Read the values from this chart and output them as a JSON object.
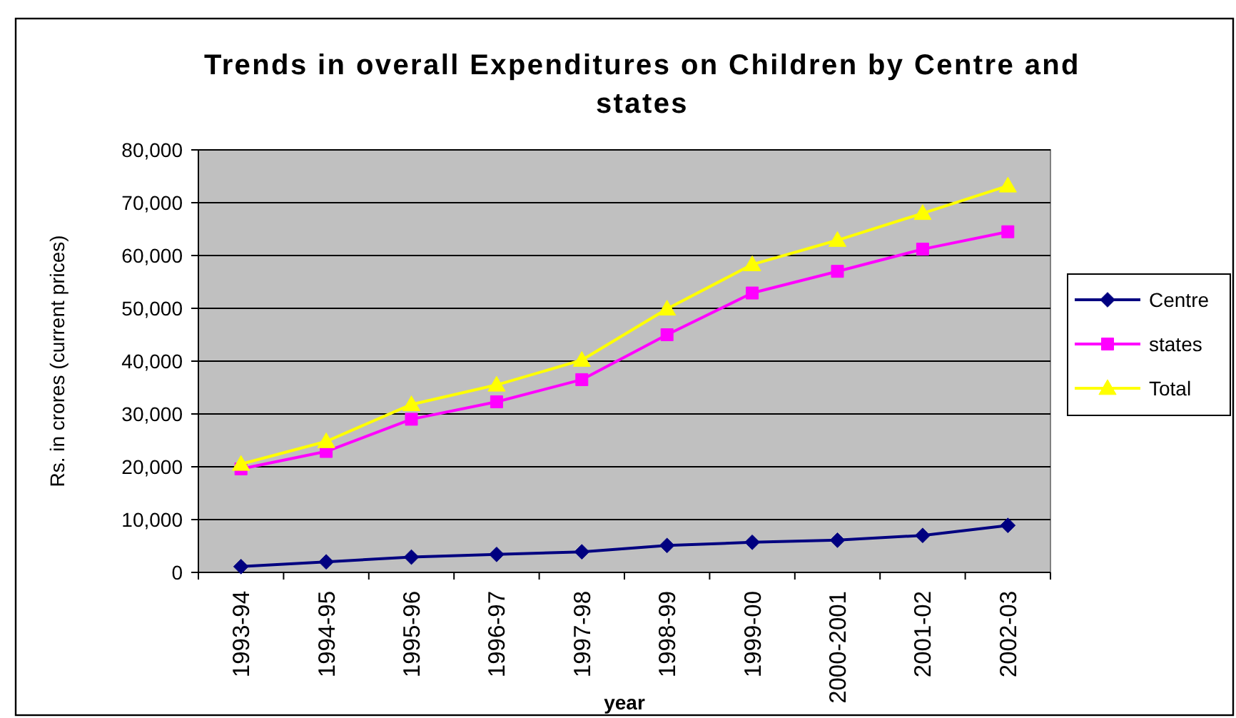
{
  "chart_data": {
    "type": "line",
    "title": "Trends in overall Expenditures on Children by Centre and states",
    "xlabel": "year",
    "ylabel": "Rs. in crores (current prices)",
    "categories": [
      "1993-94",
      "1994-95",
      "1995-96",
      "1996-97",
      "1997-98",
      "1998-99",
      "1999-00",
      "2000-2001",
      "2001-02",
      "2002-03"
    ],
    "series": [
      {
        "name": "Centre",
        "color": "#000080",
        "marker": "diamond",
        "values": [
          1100,
          2000,
          2900,
          3400,
          3900,
          5100,
          5700,
          6100,
          7000,
          8900
        ]
      },
      {
        "name": "states",
        "color": "#ff00ff",
        "marker": "square",
        "values": [
          19600,
          22900,
          29000,
          32300,
          36500,
          45000,
          52900,
          57000,
          61200,
          64500
        ]
      },
      {
        "name": "Total",
        "color": "#ffff00",
        "marker": "triangle",
        "values": [
          20500,
          24800,
          31800,
          35500,
          40200,
          49900,
          58300,
          62900,
          68000,
          73200
        ]
      }
    ],
    "ylim": [
      0,
      80000
    ],
    "yticks": [
      0,
      {
        "value": 10000,
        "label": "10,000"
      },
      {
        "value": 20000,
        "label": "20,000"
      },
      {
        "value": 30000,
        "label": "30,000"
      },
      {
        "value": 40000,
        "label": "40,000"
      },
      {
        "value": 50000,
        "label": "50,000"
      },
      {
        "value": 60000,
        "label": "60,000"
      },
      {
        "value": 70000,
        "label": "70,000"
      },
      {
        "value": 80000,
        "label": "80,000"
      }
    ],
    "grid": "y",
    "legend": "right",
    "line_style": "solid"
  }
}
